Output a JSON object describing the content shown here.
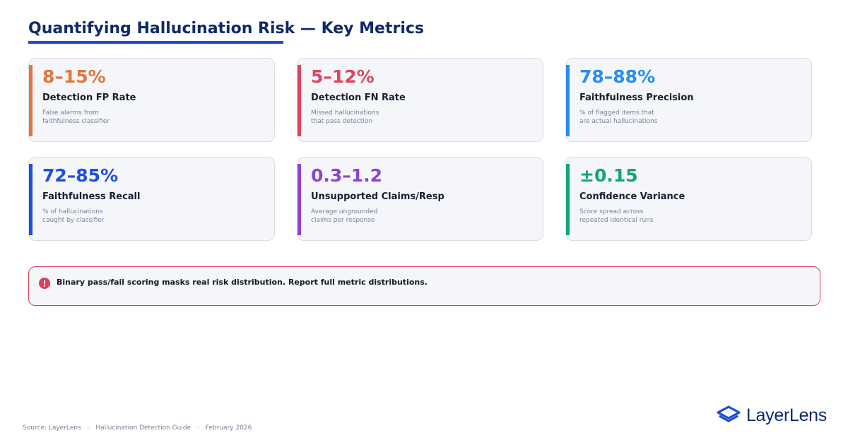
{
  "header": {
    "title": "Quantifying Hallucination Risk — Key Metrics"
  },
  "metrics": [
    {
      "value": "8–15%",
      "label": "Detection FP Rate",
      "desc": [
        "False alarms from",
        "faithfulness classifier"
      ],
      "color": "#e2763a"
    },
    {
      "value": "5–12%",
      "label": "Detection FN Rate",
      "desc": [
        "Missed hallucinations",
        "that pass detection"
      ],
      "color": "#e0455e"
    },
    {
      "value": "78–88%",
      "label": "Faithfulness Precision",
      "desc": [
        "% of flagged items that",
        "are actual hallucinations"
      ],
      "color": "#2a8df0"
    },
    {
      "value": "72–85%",
      "label": "Faithfulness Recall",
      "desc": [
        "% of hallucinations",
        "caught by classifier"
      ],
      "color": "#1f4fe0"
    },
    {
      "value": "0.3–1.2",
      "label": "Unsupported Claims/Resp",
      "desc": [
        "Average ungrounded",
        "claims per response"
      ],
      "color": "#8a44d8"
    },
    {
      "value": "±0.15",
      "label": "Confidence Variance",
      "desc": [
        "Score spread across",
        "repeated identical runs"
      ],
      "color": "#12a577"
    }
  ],
  "callout": {
    "icon": "alert-icon",
    "message": "Binary pass/fail scoring masks real risk distribution. Report full metric distributions.",
    "color": "#d6405a"
  },
  "footer": {
    "source": "Source: LayerLens",
    "guide": "Hallucination Detection Guide",
    "date": "February 2026",
    "separator": "·"
  },
  "brand": {
    "name": "LayerLens",
    "icon": "layers-logo-icon",
    "color": "#1d4ed8"
  }
}
